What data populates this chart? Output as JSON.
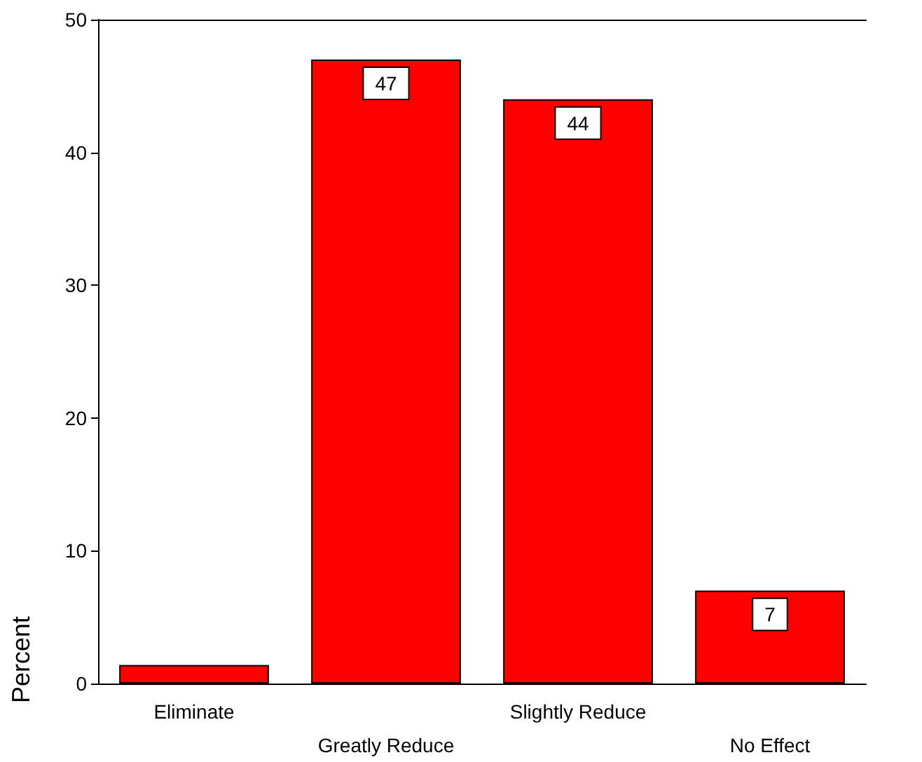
{
  "chart_data": {
    "type": "bar",
    "ylabel": "Percent",
    "categories": [
      "Eliminate",
      "Greatly Reduce",
      "Slightly Reduce",
      "No Effect"
    ],
    "values": [
      1.4,
      47,
      44,
      7
    ],
    "value_labels": [
      null,
      "47",
      "44",
      "7"
    ],
    "color": "#ff0000",
    "ylim": [
      0,
      50
    ],
    "yticks": [
      0,
      10,
      20,
      30,
      40,
      50
    ],
    "grid": false
  }
}
